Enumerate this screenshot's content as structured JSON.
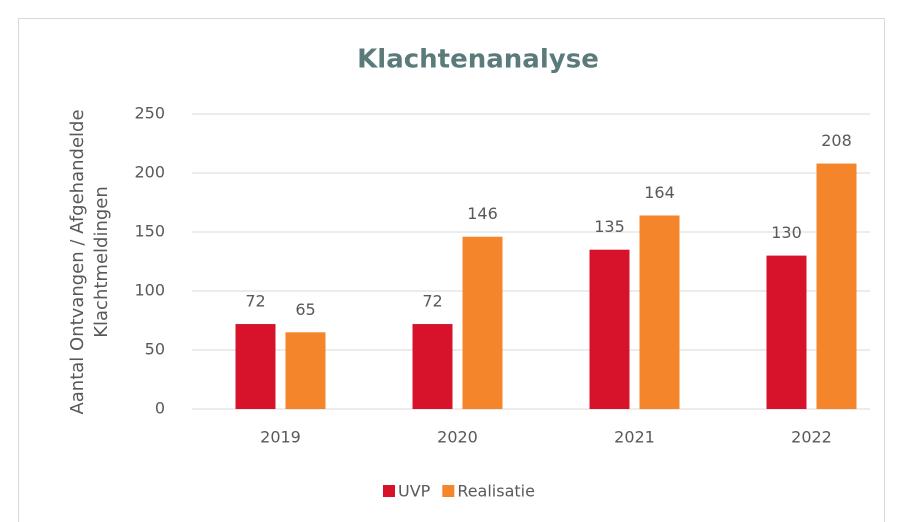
{
  "chart_data": {
    "type": "bar",
    "title": "Klachtenanalyse",
    "ylabel": [
      "Aantal Ontvangen / Afgehandelde",
      "Klachtmeldingen"
    ],
    "categories": [
      "2019",
      "2020",
      "2021",
      "2022"
    ],
    "series": [
      {
        "name": "UVP",
        "color": "#d7132c",
        "values": [
          72,
          72,
          135,
          130
        ]
      },
      {
        "name": "Realisatie",
        "color": "#f5852a",
        "values": [
          65,
          146,
          164,
          208
        ]
      }
    ],
    "ylim": [
      0,
      250
    ],
    "yticks": [
      0,
      50,
      100,
      150,
      200,
      250
    ],
    "grid": true,
    "legend": "bottom"
  }
}
